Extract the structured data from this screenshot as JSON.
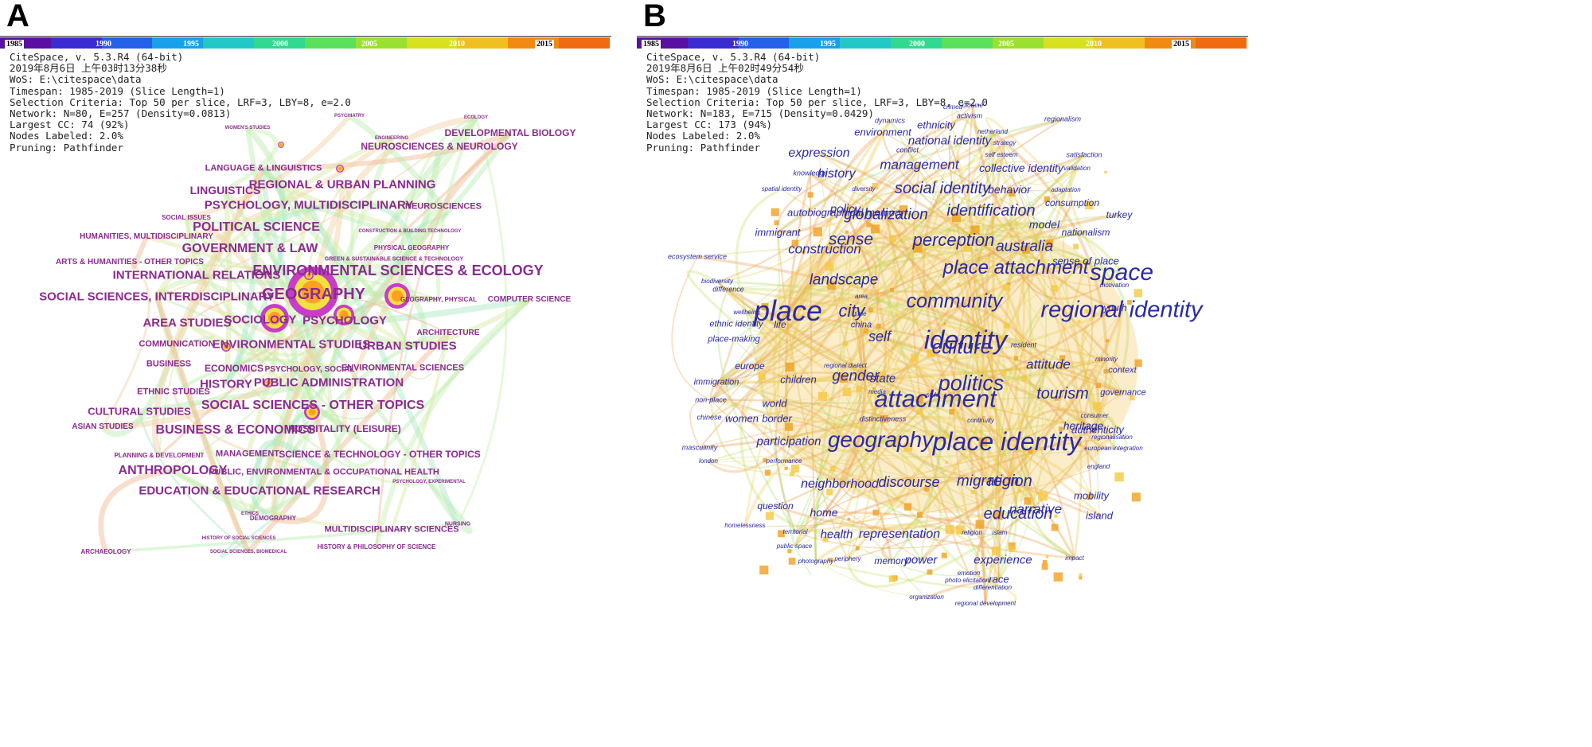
{
  "panel_a": {
    "letter": "A",
    "timebar_years": [
      "1985",
      "1990",
      "1995",
      "2000",
      "2005",
      "2010",
      "2015"
    ],
    "info_lines": [
      "CiteSpace, v. 5.3.R4 (64-bit)",
      "2019年8月6日 上午03时13分38秒",
      "WoS: E:\\citespace\\data",
      "Timespan: 1985-2019 (Slice Length=1)",
      "Selection Criteria: Top 50 per slice, LRF=3, LBY=8, e=2.0",
      "Network: N=80, E=257 (Density=0.0813)",
      "Largest CC: 74 (92%)",
      "Nodes Labeled: 2.0%",
      "Pruning: Pathfinder"
    ],
    "labels": [
      "DEVELOPMENTAL BIOLOGY",
      "NEUROSCIENCES & NEUROLOGY",
      "LANGUAGE & LINGUISTICS",
      "REGIONAL & URBAN PLANNING",
      "LINGUISTICS",
      "PSYCHOLOGY, MULTIDISCIPLINARY",
      "NEUROSCIENCES",
      "SOCIAL ISSUES",
      "POLITICAL SCIENCE",
      "HUMANITIES, MULTIDISCIPLINARY",
      "PHYSICAL GEOGRAPHY",
      "GOVERNMENT & LAW",
      "ARTS & HUMANITIES - OTHER TOPICS",
      "GREEN & SUSTAINABLE SCIENCE & TECHNOLOGY",
      "INTERNATIONAL RELATIONS",
      "ENVIRONMENTAL SCIENCES & ECOLOGY",
      "SOCIAL SCIENCES, INTERDISCIPLINARY",
      "GEOGRAPHY",
      "GEOGRAPHY, PHYSICAL",
      "COMPUTER SCIENCE",
      "AREA STUDIES",
      "SOCIOLOGY",
      "PSYCHOLOGY",
      "ARCHITECTURE",
      "COMMUNICATION",
      "ENVIRONMENTAL STUDIES",
      "URBAN STUDIES",
      "BUSINESS",
      "ECONOMICS",
      "PSYCHOLOGY, SOCIAL",
      "ENVIRONMENTAL SCIENCES",
      "HISTORY",
      "PUBLIC ADMINISTRATION",
      "ETHNIC STUDIES",
      "CULTURAL STUDIES",
      "SOCIAL SCIENCES - OTHER TOPICS",
      "ASIAN STUDIES",
      "BUSINESS & ECONOMICS",
      "HOSPITALITY (LEISURE)",
      "PLANNING & DEVELOPMENT",
      "MANAGEMENT",
      "SCIENCE & TECHNOLOGY - OTHER TOPICS",
      "ANTHROPOLOGY",
      "PUBLIC, ENVIRONMENTAL & OCCUPATIONAL HEALTH",
      "EDUCATION & EDUCATIONAL RESEARCH",
      "DEMOGRAPHY",
      "MULTIDISCIPLINARY SCIENCES",
      "HISTORY & PHILOSOPHY OF SCIENCE",
      "ARCHAEOLOGY",
      "PSYCHIATRY",
      "WOMEN'S STUDIES",
      "ENGINEERING",
      "ECOLOGY",
      "CONSTRUCTION & BUILDING TECHNOLOGY",
      "NURSING",
      "ETHICS",
      "HISTORY OF SOCIAL SCIENCES",
      "SOCIAL SCIENCES, BIOMEDICAL",
      "PSYCHOLOGY, EXPERIMENTAL"
    ]
  },
  "panel_b": {
    "letter": "B",
    "timebar_years": [
      "1985",
      "1990",
      "1995",
      "2000",
      "2005",
      "2010",
      "2015"
    ],
    "info_lines": [
      "CiteSpace, v. 5.3.R4 (64-bit)",
      "2019年8月6日 上午02时49分54秒",
      "WoS: E:\\citespace\\data",
      "Timespan: 1985-2019 (Slice Length=1)",
      "Selection Criteria: Top 50 per slice, LRF=3, LBY=8, e=2.0",
      "Network: N=183, E=715 (Density=0.0429)",
      "Largest CC: 173 (94%)",
      "Nodes Labeled: 2.0%",
      "Pruning: Pathfinder"
    ],
    "labels": [
      "crimea",
      "ukraine",
      "activism",
      "dynamics",
      "ethnicity",
      "regionalism",
      "environment",
      "netherland",
      "national identity",
      "strategy",
      "conflict",
      "self esteem",
      "satisfaction",
      "expression",
      "management",
      "collective identity",
      "validation",
      "knowledge",
      "history",
      "social identity",
      "behavior",
      "adaptation",
      "spatial identity",
      "diversity",
      "consumption",
      "policy",
      "identification",
      "autobiographical memory",
      "globalization",
      "turkey",
      "model",
      "immigrant",
      "sense",
      "perception",
      "nationalism",
      "australia",
      "construction",
      "ecosystem service",
      "sense of place",
      "place attachment",
      "space",
      "landscape",
      "biodiversity",
      "community",
      "motivation",
      "difference",
      "city",
      "regional identity",
      "place",
      "youth",
      "area",
      "identity",
      "wellbeing",
      "time",
      "ethnic identity",
      "life",
      "china",
      "self",
      "culture",
      "place-making",
      "resident",
      "attitude",
      "minority",
      "europe",
      "regional dialect",
      "context",
      "gender",
      "children",
      "state",
      "politics",
      "immigration",
      "tourism",
      "governance",
      "attachment",
      "non-place",
      "world",
      "media",
      "style",
      "heritage",
      "authenticity",
      "chinese",
      "women",
      "border",
      "consumer",
      "distinctiveness",
      "continuity",
      "masculinity",
      "geography",
      "place identity",
      "participation",
      "regionalisation",
      "european integration",
      "london",
      "performance",
      "region",
      "migration",
      "england",
      "neighborhood",
      "discourse",
      "mobility",
      "narrative",
      "education",
      "question",
      "home",
      "island",
      "homelessness",
      "territorial",
      "religion",
      "islam",
      "health",
      "representation",
      "experience",
      "impact",
      "public space",
      "memory",
      "power",
      "photography",
      "periphery",
      "race",
      "photo elicitation",
      "emotion",
      "differentiation",
      "organization",
      "regional development"
    ]
  }
}
